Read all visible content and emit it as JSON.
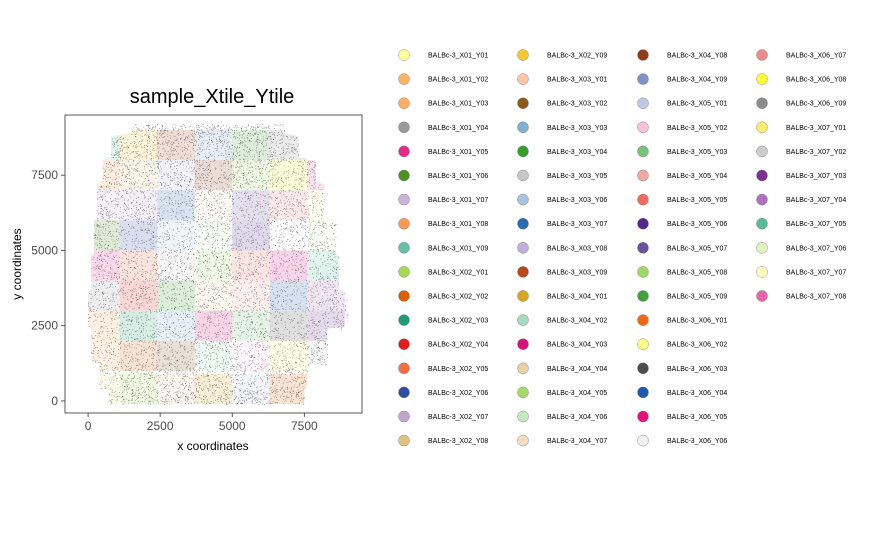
{
  "chart_data": {
    "type": "scatter",
    "title": "sample_Xtile_Ytile",
    "xlabel": "x coordinates",
    "ylabel": "y coordinates",
    "xlim": [
      -800,
      9500
    ],
    "ylim": [
      -400,
      9500
    ],
    "x_ticks": [
      0,
      2500,
      5000,
      7500
    ],
    "y_ticks": [
      0,
      2500,
      5000,
      7500
    ],
    "grid": false,
    "legend_position": "right",
    "legend_columns": 4,
    "tile_size": 1000,
    "series": [
      {
        "name": "BALBc-3_X01_Y01",
        "color": "#FFFF99"
      },
      {
        "name": "BALBc-3_X01_Y02",
        "color": "#FDB462"
      },
      {
        "name": "BALBc-3_X01_Y03",
        "color": "#FDAE61"
      },
      {
        "name": "BALBc-3_X01_Y04",
        "color": "#999999"
      },
      {
        "name": "BALBc-3_X01_Y05",
        "color": "#E7298A"
      },
      {
        "name": "BALBc-3_X01_Y06",
        "color": "#4D9221"
      },
      {
        "name": "BALBc-3_X01_Y07",
        "color": "#CAB2D6"
      },
      {
        "name": "BALBc-3_X01_Y08",
        "color": "#FB9A50"
      },
      {
        "name": "BALBc-3_X01_Y09",
        "color": "#66C2A5"
      },
      {
        "name": "BALBc-3_X02_Y01",
        "color": "#A6D854"
      },
      {
        "name": "BALBc-3_X02_Y02",
        "color": "#D95F02"
      },
      {
        "name": "BALBc-3_X02_Y03",
        "color": "#1B9E77"
      },
      {
        "name": "BALBc-3_X02_Y04",
        "color": "#E41A1C"
      },
      {
        "name": "BALBc-3_X02_Y05",
        "color": "#F46D43"
      },
      {
        "name": "BALBc-3_X02_Y06",
        "color": "#2C4FA6"
      },
      {
        "name": "BALBc-3_X02_Y07",
        "color": "#C2A5CF"
      },
      {
        "name": "BALBc-3_X02_Y08",
        "color": "#DFC27D"
      },
      {
        "name": "BALBc-3_X02_Y09",
        "color": "#F5C92E"
      },
      {
        "name": "BALBc-3_X03_Y01",
        "color": "#FCC5A8"
      },
      {
        "name": "BALBc-3_X03_Y02",
        "color": "#8C5A1A"
      },
      {
        "name": "BALBc-3_X03_Y03",
        "color": "#80B1D3"
      },
      {
        "name": "BALBc-3_X03_Y04",
        "color": "#33A02C"
      },
      {
        "name": "BALBc-3_X03_Y05",
        "color": "#C7C7C7"
      },
      {
        "name": "BALBc-3_X03_Y06",
        "color": "#A6C4DE"
      },
      {
        "name": "BALBc-3_X03_Y07",
        "color": "#2B6CB0"
      },
      {
        "name": "BALBc-3_X03_Y08",
        "color": "#BDB0DC"
      },
      {
        "name": "BALBc-3_X03_Y09",
        "color": "#B84A1B"
      },
      {
        "name": "BALBc-3_X04_Y01",
        "color": "#DAA520"
      },
      {
        "name": "BALBc-3_X04_Y02",
        "color": "#A6DBC2"
      },
      {
        "name": "BALBc-3_X04_Y03",
        "color": "#D6127A"
      },
      {
        "name": "BALBc-3_X04_Y04",
        "color": "#E5D2A8"
      },
      {
        "name": "BALBc-3_X04_Y05",
        "color": "#A6D96A"
      },
      {
        "name": "BALBc-3_X04_Y06",
        "color": "#C7E9C0"
      },
      {
        "name": "BALBc-3_X04_Y07",
        "color": "#F2DCC2"
      },
      {
        "name": "BALBc-3_X04_Y08",
        "color": "#8E3C1A"
      },
      {
        "name": "BALBc-3_X04_Y09",
        "color": "#7F93C8"
      },
      {
        "name": "BALBc-3_X05_Y01",
        "color": "#BFC9E2"
      },
      {
        "name": "BALBc-3_X05_Y02",
        "color": "#F7C1DD"
      },
      {
        "name": "BALBc-3_X05_Y03",
        "color": "#74C476"
      },
      {
        "name": "BALBc-3_X05_Y04",
        "color": "#F4A6A0"
      },
      {
        "name": "BALBc-3_X05_Y05",
        "color": "#EF6A5E"
      },
      {
        "name": "BALBc-3_X05_Y06",
        "color": "#54278F"
      },
      {
        "name": "BALBc-3_X05_Y07",
        "color": "#6A51A3"
      },
      {
        "name": "BALBc-3_X05_Y08",
        "color": "#9FD865"
      },
      {
        "name": "BALBc-3_X05_Y09",
        "color": "#41A03A"
      },
      {
        "name": "BALBc-3_X06_Y01",
        "color": "#F16913"
      },
      {
        "name": "BALBc-3_X06_Y02",
        "color": "#FFFF80"
      },
      {
        "name": "BALBc-3_X06_Y03",
        "color": "#4D4D4D"
      },
      {
        "name": "BALBc-3_X06_Y04",
        "color": "#1F5AA6"
      },
      {
        "name": "BALBc-3_X06_Y05",
        "color": "#E7107A"
      },
      {
        "name": "BALBc-3_X06_Y06",
        "color": "#F0F0F0"
      },
      {
        "name": "BALBc-3_X06_Y07",
        "color": "#F08A8A"
      },
      {
        "name": "BALBc-3_X06_Y08",
        "color": "#FFFF33"
      },
      {
        "name": "BALBc-3_X06_Y09",
        "color": "#8C8C8C"
      },
      {
        "name": "BALBc-3_X07_Y01",
        "color": "#FFED6F"
      },
      {
        "name": "BALBc-3_X07_Y02",
        "color": "#CCCCCC"
      },
      {
        "name": "BALBc-3_X07_Y03",
        "color": "#7B3294"
      },
      {
        "name": "BALBc-3_X07_Y04",
        "color": "#B06FC0"
      },
      {
        "name": "BALBc-3_X07_Y05",
        "color": "#5ABA9C"
      },
      {
        "name": "BALBc-3_X07_Y06",
        "color": "#E0F3C0"
      },
      {
        "name": "BALBc-3_X07_Y07",
        "color": "#FFFFC0"
      },
      {
        "name": "BALBc-3_X07_Y08",
        "color": "#EB63A8"
      }
    ]
  }
}
